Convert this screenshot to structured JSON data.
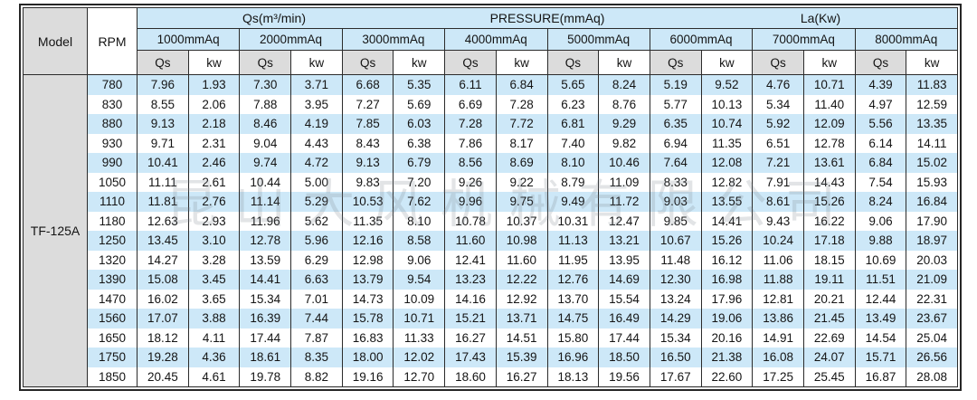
{
  "colors": {
    "stripe_blue": "#cde8f8",
    "header_blue": "#cde8f8",
    "cell_gray": "#dcdcdc",
    "border_dark": "#2b2b2b",
    "text": "#141414"
  },
  "watermark_text": "昆山大风机械有限公司",
  "table": {
    "model_header": "Model",
    "rpm_header": "RPM",
    "band_labels": {
      "qs": "Qs(m³/min)",
      "pressure": "PRESSURE(mmAq)",
      "la": "La(Kw)"
    },
    "pressure_groups": [
      "1000mmAq",
      "2000mmAq",
      "3000mmAq",
      "4000mmAq",
      "5000mmAq",
      "6000mmAq",
      "7000mmAq",
      "8000mmAq"
    ],
    "sub_headers": {
      "qs": "Qs",
      "kw": "kw"
    },
    "model_value": "TF-125A",
    "rows": [
      {
        "rpm": "780",
        "values": [
          "7.96",
          "1.93",
          "7.30",
          "3.71",
          "6.68",
          "5.35",
          "6.11",
          "6.84",
          "5.65",
          "8.24",
          "5.19",
          "9.52",
          "4.76",
          "10.71",
          "4.39",
          "11.83"
        ]
      },
      {
        "rpm": "830",
        "values": [
          "8.55",
          "2.06",
          "7.88",
          "3.95",
          "7.27",
          "5.69",
          "6.69",
          "7.28",
          "6.23",
          "8.76",
          "5.77",
          "10.13",
          "5.34",
          "11.40",
          "4.97",
          "12.59"
        ]
      },
      {
        "rpm": "880",
        "values": [
          "9.13",
          "2.18",
          "8.46",
          "4.19",
          "7.85",
          "6.03",
          "7.28",
          "7.72",
          "6.81",
          "9.29",
          "6.35",
          "10.74",
          "5.92",
          "12.09",
          "5.56",
          "13.35"
        ]
      },
      {
        "rpm": "930",
        "values": [
          "9.71",
          "2.31",
          "9.04",
          "4.43",
          "8.43",
          "6.38",
          "7.86",
          "8.17",
          "7.40",
          "9.82",
          "6.94",
          "11.35",
          "6.51",
          "12.78",
          "6.14",
          "14.11"
        ]
      },
      {
        "rpm": "990",
        "values": [
          "10.41",
          "2.46",
          "9.74",
          "4.72",
          "9.13",
          "6.79",
          "8.56",
          "8.69",
          "8.10",
          "10.46",
          "7.64",
          "12.08",
          "7.21",
          "13.61",
          "6.84",
          "15.02"
        ]
      },
      {
        "rpm": "1050",
        "values": [
          "11.11",
          "2.61",
          "10.44",
          "5.00",
          "9.83",
          "7.20",
          "9.26",
          "9.22",
          "8.79",
          "11.09",
          "8.33",
          "12.82",
          "7.91",
          "14.43",
          "7.54",
          "15.93"
        ]
      },
      {
        "rpm": "1110",
        "values": [
          "11.81",
          "2.76",
          "11.14",
          "5.29",
          "10.53",
          "7.62",
          "9.96",
          "9.75",
          "9.49",
          "11.72",
          "9.03",
          "13.55",
          "8.61",
          "15.26",
          "8.24",
          "16.84"
        ]
      },
      {
        "rpm": "1180",
        "values": [
          "12.63",
          "2.93",
          "11.96",
          "5.62",
          "11.35",
          "8.10",
          "10.78",
          "10.37",
          "10.31",
          "12.47",
          "9.85",
          "14.41",
          "9.43",
          "16.22",
          "9.06",
          "17.90"
        ]
      },
      {
        "rpm": "1250",
        "values": [
          "13.45",
          "3.10",
          "12.78",
          "5.96",
          "12.16",
          "8.58",
          "11.60",
          "10.98",
          "11.13",
          "13.21",
          "10.67",
          "15.26",
          "10.24",
          "17.18",
          "9.88",
          "18.97"
        ]
      },
      {
        "rpm": "1320",
        "values": [
          "14.27",
          "3.28",
          "13.59",
          "6.29",
          "12.98",
          "9.06",
          "12.41",
          "11.60",
          "11.95",
          "13.95",
          "11.48",
          "16.12",
          "11.06",
          "18.15",
          "10.69",
          "20.03"
        ]
      },
      {
        "rpm": "1390",
        "values": [
          "15.08",
          "3.45",
          "14.41",
          "6.63",
          "13.79",
          "9.54",
          "13.23",
          "12.22",
          "12.76",
          "14.69",
          "12.30",
          "16.98",
          "11.88",
          "19.11",
          "11.51",
          "21.09"
        ]
      },
      {
        "rpm": "1470",
        "values": [
          "16.02",
          "3.65",
          "15.34",
          "7.01",
          "14.73",
          "10.09",
          "14.16",
          "12.92",
          "13.70",
          "15.54",
          "13.24",
          "17.96",
          "12.81",
          "20.21",
          "12.44",
          "22.31"
        ]
      },
      {
        "rpm": "1560",
        "values": [
          "17.07",
          "3.88",
          "16.39",
          "7.44",
          "15.78",
          "10.71",
          "15.21",
          "13.71",
          "14.75",
          "16.49",
          "14.29",
          "19.06",
          "13.86",
          "21.45",
          "13.49",
          "23.67"
        ]
      },
      {
        "rpm": "1650",
        "values": [
          "18.12",
          "4.11",
          "17.44",
          "7.87",
          "16.83",
          "11.33",
          "16.27",
          "14.51",
          "15.80",
          "17.44",
          "15.34",
          "20.16",
          "14.91",
          "22.69",
          "14.54",
          "25.04"
        ]
      },
      {
        "rpm": "1750",
        "values": [
          "19.28",
          "4.36",
          "18.61",
          "8.35",
          "18.00",
          "12.02",
          "17.43",
          "15.39",
          "16.96",
          "18.50",
          "16.50",
          "21.38",
          "16.08",
          "24.07",
          "15.71",
          "26.56"
        ]
      },
      {
        "rpm": "1850",
        "values": [
          "20.45",
          "4.61",
          "19.78",
          "8.82",
          "19.16",
          "12.70",
          "18.60",
          "16.27",
          "18.13",
          "19.56",
          "17.67",
          "22.60",
          "17.25",
          "25.45",
          "16.87",
          "28.08"
        ]
      }
    ]
  }
}
